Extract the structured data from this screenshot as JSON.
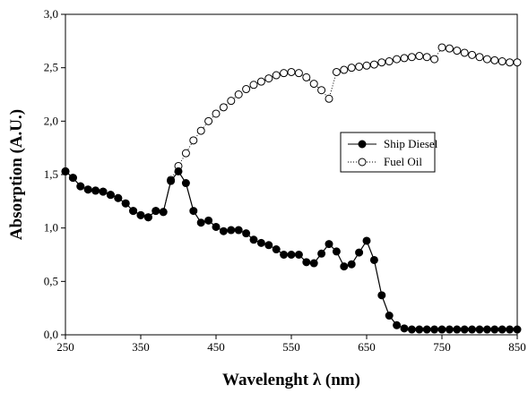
{
  "chart_data": {
    "type": "line",
    "x_label": "Wavelenght λ (nm)",
    "y_label": "Absorption (A.U.)",
    "x": [
      250,
      260,
      270,
      280,
      290,
      300,
      310,
      320,
      330,
      340,
      350,
      360,
      370,
      380,
      390,
      400,
      410,
      420,
      430,
      440,
      450,
      460,
      470,
      480,
      490,
      500,
      510,
      520,
      530,
      540,
      550,
      560,
      570,
      580,
      590,
      600,
      610,
      620,
      630,
      640,
      650,
      660,
      670,
      680,
      690,
      700,
      710,
      720,
      730,
      740,
      750,
      760,
      770,
      780,
      790,
      800,
      810,
      820,
      830,
      840,
      850
    ],
    "series": [
      {
        "name": "Ship Diesel",
        "color": "#000000",
        "marker": "filled",
        "line": "solid",
        "values": [
          1.53,
          1.47,
          1.39,
          1.36,
          1.35,
          1.34,
          1.31,
          1.28,
          1.23,
          1.16,
          1.12,
          1.1,
          1.16,
          1.15,
          1.44,
          1.53,
          1.42,
          1.16,
          1.05,
          1.07,
          1.01,
          0.97,
          0.98,
          0.98,
          0.95,
          0.89,
          0.86,
          0.84,
          0.8,
          0.75,
          0.75,
          0.75,
          0.68,
          0.67,
          0.76,
          0.85,
          0.78,
          0.64,
          0.66,
          0.77,
          0.88,
          0.7,
          0.37,
          0.18,
          0.09,
          0.06,
          0.05,
          0.05,
          0.05,
          0.05,
          0.05,
          0.05,
          0.05,
          0.05,
          0.05,
          0.05,
          0.05,
          0.05,
          0.05,
          0.05,
          0.05
        ]
      },
      {
        "name": "Fuel Oil",
        "color": "#000000",
        "marker": "open",
        "line": "dotted",
        "values": [
          1.53,
          1.47,
          1.39,
          1.36,
          1.35,
          1.34,
          1.31,
          1.28,
          1.23,
          1.16,
          1.12,
          1.1,
          1.16,
          1.15,
          1.45,
          1.58,
          1.7,
          1.82,
          1.91,
          2.0,
          2.07,
          2.13,
          2.19,
          2.25,
          2.3,
          2.34,
          2.37,
          2.4,
          2.43,
          2.45,
          2.46,
          2.45,
          2.41,
          2.35,
          2.29,
          2.21,
          2.46,
          2.48,
          2.5,
          2.51,
          2.52,
          2.53,
          2.55,
          2.56,
          2.58,
          2.59,
          2.6,
          2.61,
          2.6,
          2.58,
          2.69,
          2.68,
          2.66,
          2.64,
          2.62,
          2.6,
          2.58,
          2.57,
          2.56,
          2.55,
          2.55
        ]
      }
    ],
    "xlim": [
      250,
      850
    ],
    "xticks": [
      250,
      350,
      450,
      550,
      650,
      750,
      850
    ],
    "ylim": [
      0,
      3
    ],
    "yticks": [
      {
        "value": 0,
        "label": "0,0"
      },
      {
        "value": 0.5,
        "label": "0,5"
      },
      {
        "value": 1,
        "label": "1,0"
      },
      {
        "value": 1.5,
        "label": "1,5"
      },
      {
        "value": 2,
        "label": "2,0"
      },
      {
        "value": 2.5,
        "label": "2,5"
      },
      {
        "value": 3,
        "label": "3,0"
      }
    ],
    "grid": false,
    "legend": "center-right"
  }
}
